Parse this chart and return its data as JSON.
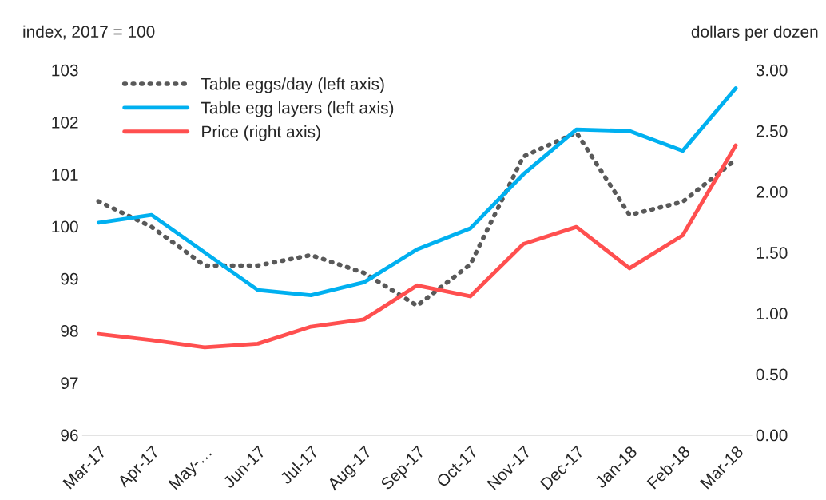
{
  "chart_data": {
    "type": "line",
    "ylabel": "index, 2017 = 100",
    "y2label": "dollars per dozen",
    "categories": [
      "Mar-17",
      "Apr-17",
      "May-…",
      "Jun-17",
      "Jul-17",
      "Aug-17",
      "Sep-17",
      "Oct-17",
      "Nov-17",
      "Dec-17",
      "Jan-18",
      "Feb-18",
      "Mar-18"
    ],
    "series": [
      {
        "name": "Table eggs/day (left axis)",
        "color": "#595959",
        "line_style": "dotted",
        "values": [
          100.48,
          99.99,
          99.25,
          99.25,
          99.45,
          99.11,
          98.48,
          99.27,
          101.34,
          101.8,
          100.22,
          100.47,
          101.28
        ]
      },
      {
        "name": "Table egg layers (left axis)",
        "color": "#00b0f0",
        "line_style": "solid",
        "values": [
          100.07,
          100.22,
          99.5,
          98.78,
          98.68,
          98.93,
          99.56,
          99.96,
          101.0,
          101.86,
          101.83,
          101.45,
          102.65
        ]
      },
      {
        "name": "Price (right axis)",
        "color": "#ff4f4f",
        "line_style": "solid",
        "axis": "y2",
        "values": [
          0.83,
          0.78,
          0.72,
          0.75,
          0.89,
          0.95,
          1.23,
          1.14,
          1.57,
          1.71,
          1.37,
          1.64,
          2.38
        ]
      }
    ],
    "ylim": [
      96,
      103
    ],
    "yticks": [
      96,
      97,
      98,
      99,
      100,
      101,
      102,
      103
    ],
    "y2lim": [
      0,
      3
    ],
    "y2ticks": [
      {
        "value": 0,
        "label": "0.00"
      },
      {
        "value": 0.5,
        "label": "0.50"
      },
      {
        "value": 1,
        "label": "1.00"
      },
      {
        "value": 1.5,
        "label": "1.50"
      },
      {
        "value": 2,
        "label": "2.00"
      },
      {
        "value": 2.5,
        "label": "2.50"
      },
      {
        "value": 3,
        "label": "3.00"
      }
    ],
    "grid": false,
    "legend": "top left",
    "marker": "none"
  }
}
